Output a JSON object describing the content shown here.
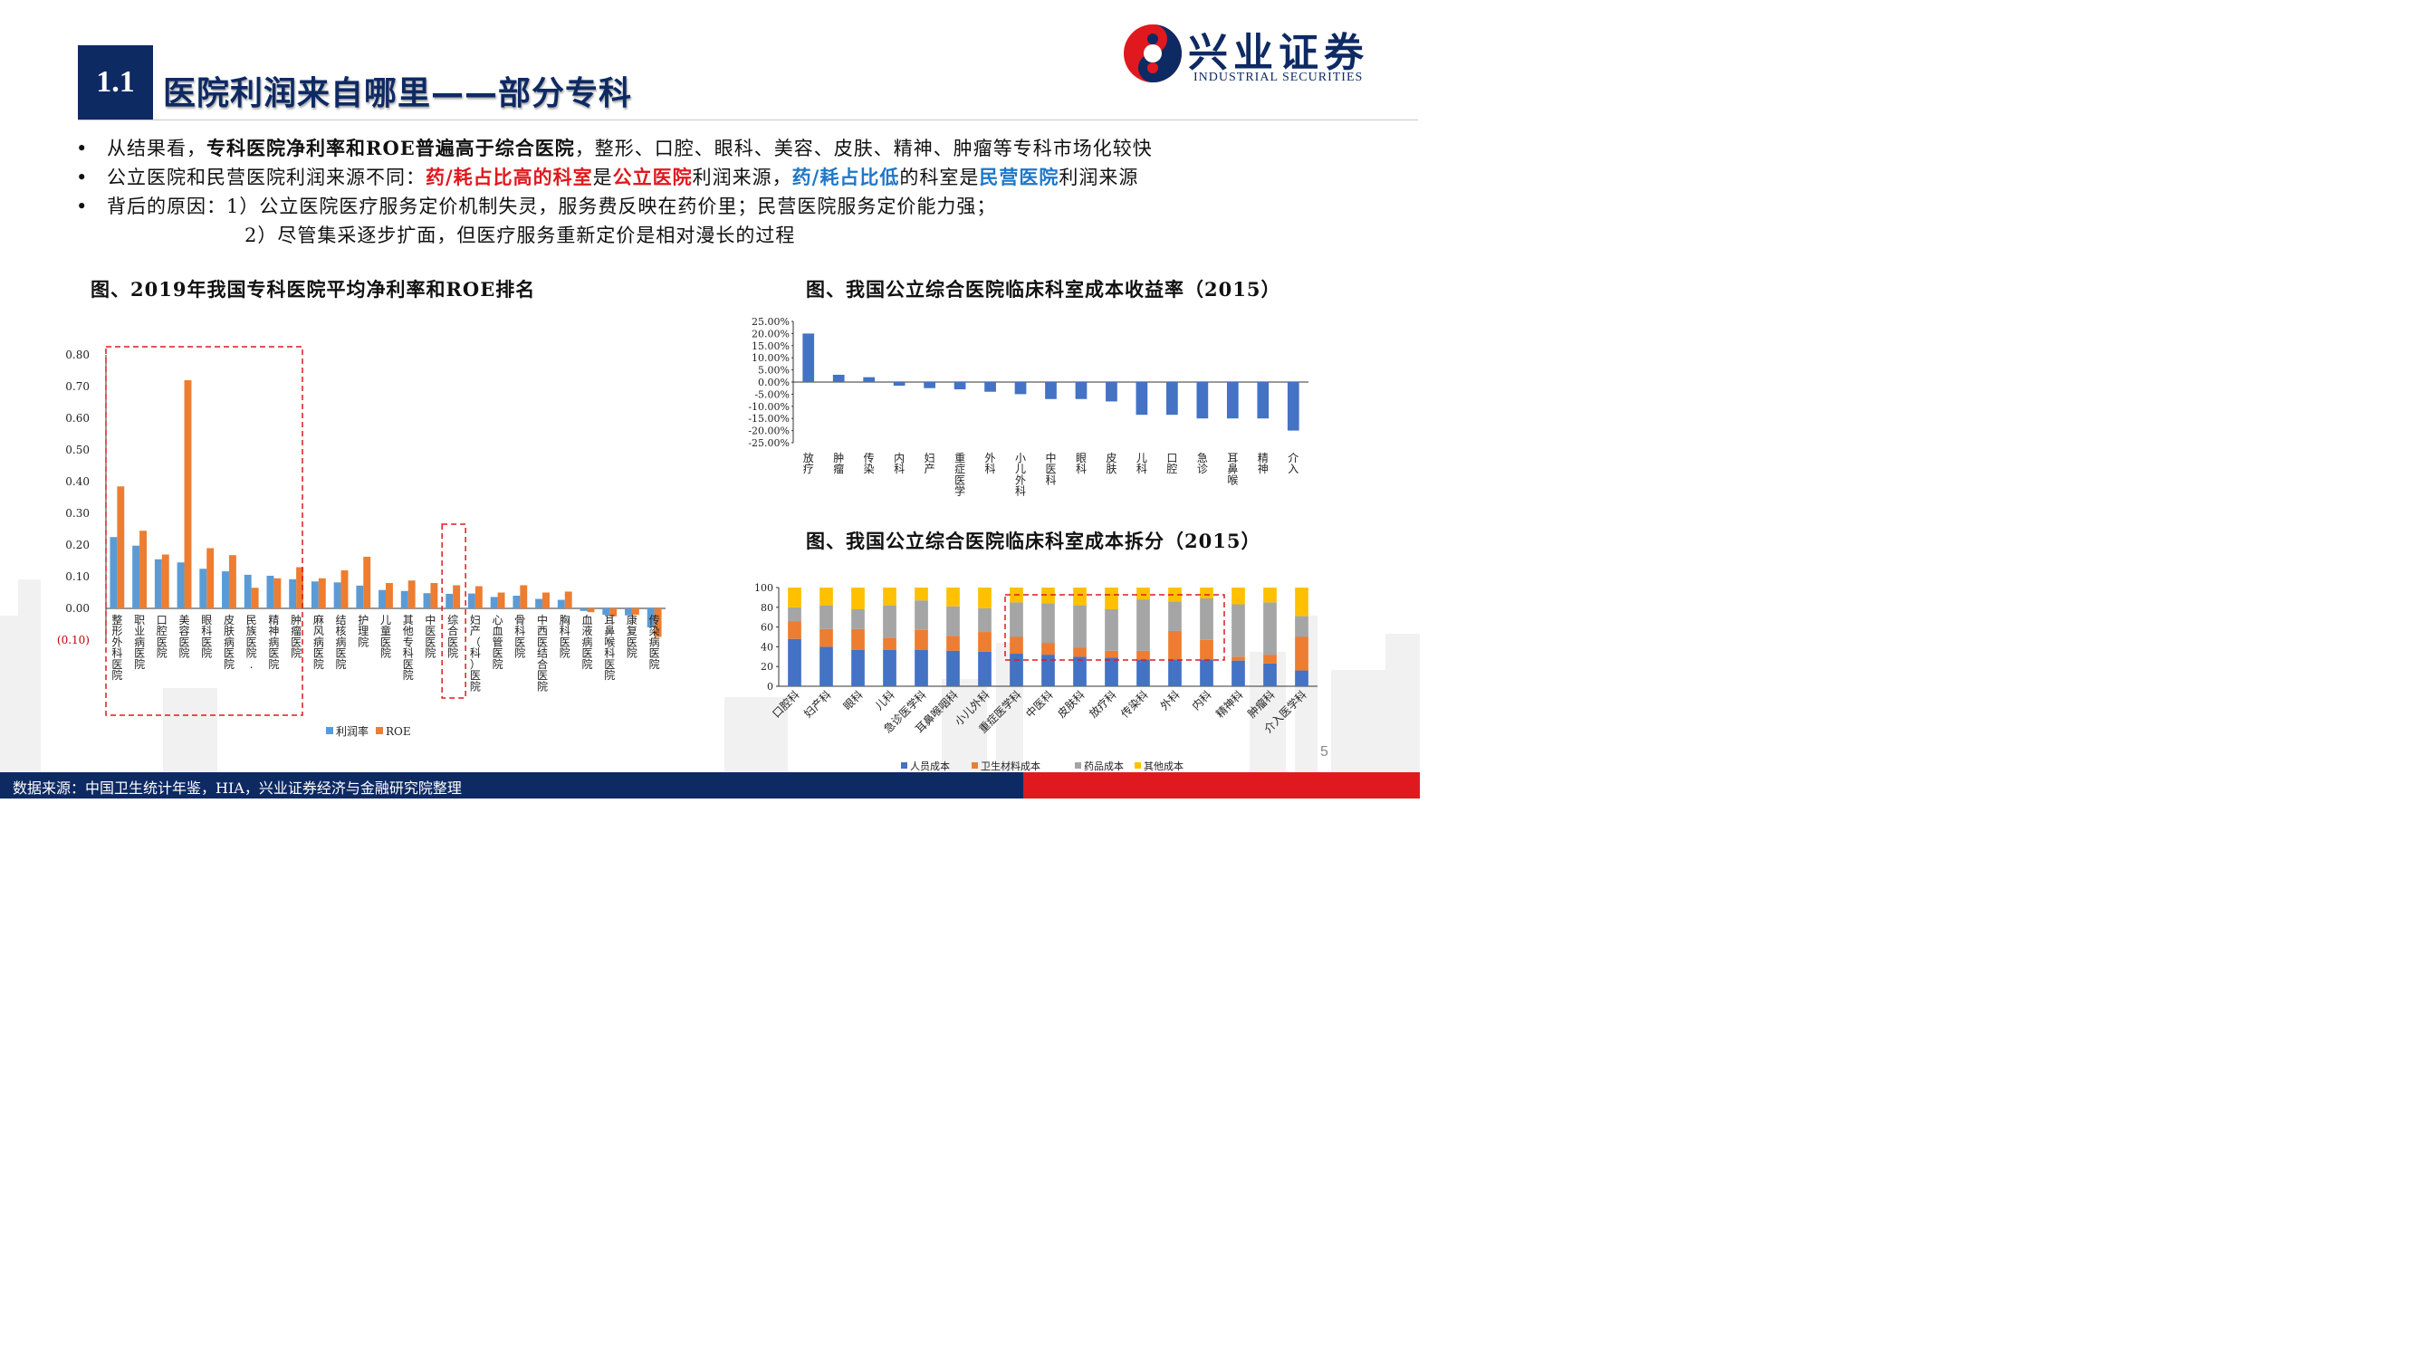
{
  "header": {
    "section_number": "1.1",
    "title": "医院利润来自哪里——部分专科",
    "logo_cn": "兴业证券",
    "logo_en": "INDUSTRIAL SECURITIES"
  },
  "bullets": {
    "b1": {
      "p1": "从结果看，",
      "p2": "专科医院净利率和ROE普遍高于综合医院",
      "p3": "，整形、口腔、眼科、美容、皮肤、精神、肿瘤等专科市场化较快"
    },
    "b2": {
      "p1": "公立医院和民营医院利润来源不同：",
      "p2": "药/耗占比高的科室",
      "p3": "是",
      "p4": "公立医院",
      "p5": "利润来源，",
      "p6": "药/耗占比低",
      "p7": "的科室是",
      "p8": "民营医院",
      "p9": "利润来源"
    },
    "b3": "背后的原因：1）公立医院医疗服务定价机制失灵，服务费反映在药价里；民营医院服务定价能力强；",
    "b4": "2）尽管集采逐步扩面，但医疗服务重新定价是相对漫长的过程"
  },
  "footer": {
    "source": "数据来源：中国卫生统计年鉴，HIA，兴业证券经济与金融研究院整理",
    "page_number": "5"
  },
  "colors": {
    "navy": "#0e2a63",
    "red": "#e0191e",
    "blue_text": "#1f77c9",
    "bar_blue": "#5b9bd5",
    "bar_orange": "#ed7d31",
    "bar_blue_dark": "#4472c4",
    "bar_gray": "#a5a5a5",
    "bar_yellow": "#ffc000"
  },
  "chart_data": [
    {
      "type": "bar",
      "title": "图、2019年我国专科医院平均净利率和ROE排名",
      "categories": [
        "整形外科医院",
        "职业病医院",
        "口腔医院",
        "美容医院",
        "眼科医院",
        "皮肤病医院",
        "民族医院.",
        "精神病医院",
        "肿瘤医院",
        "麻风病医院",
        "结核病医院",
        "护理院",
        "儿童医院",
        "其他专科医院",
        "中医医院",
        "综合医院",
        "妇产（科）医院",
        "心血管医院",
        "骨科医院",
        "中西医结合医院",
        "胸科医院",
        "血液病医院",
        "耳鼻喉科医院",
        "康复医院",
        "传染病医院"
      ],
      "series": [
        {
          "name": "利润率",
          "values": [
            0.225,
            0.198,
            0.155,
            0.145,
            0.125,
            0.117,
            0.106,
            0.103,
            0.092,
            0.085,
            0.082,
            0.072,
            0.058,
            0.055,
            0.048,
            0.046,
            0.047,
            0.036,
            0.04,
            0.03,
            0.027,
            -0.008,
            -0.02,
            -0.022,
            -0.06
          ]
        },
        {
          "name": "ROE",
          "values": [
            0.385,
            0.245,
            0.17,
            0.72,
            0.19,
            0.168,
            0.065,
            0.095,
            0.13,
            0.095,
            0.12,
            0.163,
            0.08,
            0.088,
            0.08,
            0.073,
            0.07,
            0.05,
            0.073,
            0.05,
            0.053,
            -0.012,
            -0.025,
            -0.02,
            -0.09
          ]
        }
      ],
      "ylim": [
        -0.1,
        0.8
      ],
      "yticks": [
        "(0.10)",
        "0.00",
        "0.10",
        "0.20",
        "0.30",
        "0.40",
        "0.50",
        "0.60",
        "0.70",
        "0.80"
      ],
      "legend": "bottom",
      "xlabel": "",
      "ylabel": ""
    },
    {
      "type": "bar",
      "title": "图、我国公立综合医院临床科室成本收益率（2015）",
      "categories": [
        "放疗",
        "肿瘤",
        "传染",
        "内科",
        "妇产",
        "重症医学",
        "外科",
        "小儿外科",
        "中医科",
        "眼科",
        "皮肤",
        "儿科",
        "口腔",
        "急诊",
        "耳鼻喉",
        "精神",
        "介入"
      ],
      "values": [
        20.0,
        3.0,
        2.0,
        -1.5,
        -2.5,
        -3.0,
        -4.0,
        -5.0,
        -7.0,
        -7.0,
        -8.0,
        -13.5,
        -13.5,
        -15.0,
        -15.0,
        -15.0,
        -20.0
      ],
      "ylim": [
        -25,
        25
      ],
      "yticks": [
        "25.00%",
        "20.00%",
        "15.00%",
        "10.00%",
        "5.00%",
        "0.00%",
        "-5.00%",
        "-10.00%",
        "-15.00%",
        "-20.00%",
        "-25.00%"
      ],
      "xlabel": "",
      "ylabel": ""
    },
    {
      "type": "bar",
      "stacked": true,
      "title": "图、我国公立综合医院临床科室成本拆分（2015）",
      "categories": [
        "口腔科",
        "妇产科",
        "眼科",
        "儿科",
        "急诊医学科",
        "耳鼻喉咽科",
        "小儿外科",
        "重症医学科",
        "中医科",
        "皮肤科",
        "放疗科",
        "传染科",
        "外科",
        "内科",
        "精神科",
        "肿瘤科",
        "介入医学科"
      ],
      "series": [
        {
          "name": "人员成本",
          "values": [
            48,
            40,
            37,
            37,
            37,
            36,
            35,
            33,
            32,
            30,
            29,
            27,
            27,
            27,
            26,
            23,
            16
          ]
        },
        {
          "name": "卫生材料成本",
          "values": [
            18,
            18,
            21,
            12,
            20,
            15,
            20,
            17,
            12,
            9,
            7,
            9,
            29,
            20,
            4,
            9,
            34
          ]
        },
        {
          "name": "药品成本",
          "values": [
            14,
            24,
            20,
            33,
            30,
            30,
            24,
            35,
            40,
            43,
            42,
            52,
            30,
            42,
            53,
            53,
            21
          ]
        },
        {
          "name": "其他成本",
          "values": [
            20,
            18,
            22,
            18,
            13,
            19,
            21,
            15,
            16,
            18,
            22,
            12,
            14,
            11,
            17,
            15,
            29
          ]
        }
      ],
      "ylim": [
        0,
        100
      ],
      "yticks": [
        "0",
        "20",
        "40",
        "60",
        "80",
        "100"
      ],
      "legend": "bottom",
      "xlabel": "",
      "ylabel": ""
    }
  ]
}
